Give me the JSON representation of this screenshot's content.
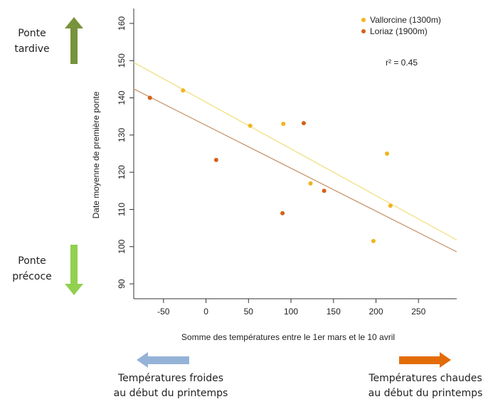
{
  "chart_data": {
    "type": "scatter",
    "xlabel": "Somme des températures entre le 1er mars et le 10 avril",
    "ylabel": "Date moyenne de première ponte",
    "xlim": [
      -85,
      295
    ],
    "ylim": [
      86,
      164
    ],
    "xticks": [
      -50,
      0,
      50,
      100,
      150,
      200,
      250
    ],
    "yticks": [
      90,
      100,
      110,
      120,
      130,
      140,
      150,
      160
    ],
    "grid": false,
    "legend_position": "top-right",
    "series": [
      {
        "name": "Vallorcine (1300m)",
        "color": "#f0b41e",
        "line_color": "#f0e080",
        "points": [
          [
            -27,
            142
          ],
          [
            52,
            132.5
          ],
          [
            91,
            133
          ],
          [
            123,
            117
          ],
          [
            197,
            101.5
          ],
          [
            213,
            125
          ],
          [
            217,
            111
          ]
        ],
        "fit": [
          [
            -85,
            149.5
          ],
          [
            295,
            101.8
          ]
        ]
      },
      {
        "name": "Loriaz (1900m)",
        "color": "#d4611a",
        "line_color": "#c8966e",
        "points": [
          [
            -66,
            140
          ],
          [
            12,
            123.3
          ],
          [
            90,
            109
          ],
          [
            115,
            133.2
          ],
          [
            139,
            115
          ]
        ],
        "fit": [
          [
            -85,
            142.4
          ],
          [
            295,
            98.6
          ]
        ]
      }
    ],
    "annotations": [
      {
        "text": "r² = 0.45"
      }
    ]
  },
  "side": {
    "late": {
      "line1": "Ponte",
      "line2": "tardive",
      "color": "#77933c"
    },
    "early": {
      "line1": "Ponte",
      "line2": "précoce",
      "color": "#92d050"
    }
  },
  "bottom": {
    "cold": {
      "line1": "Températures froides",
      "line2": "au début du printemps",
      "color": "#95b3d7"
    },
    "warm": {
      "line1": "Températures chaudes",
      "line2": "au début du printemps",
      "color": "#e36c09"
    }
  }
}
